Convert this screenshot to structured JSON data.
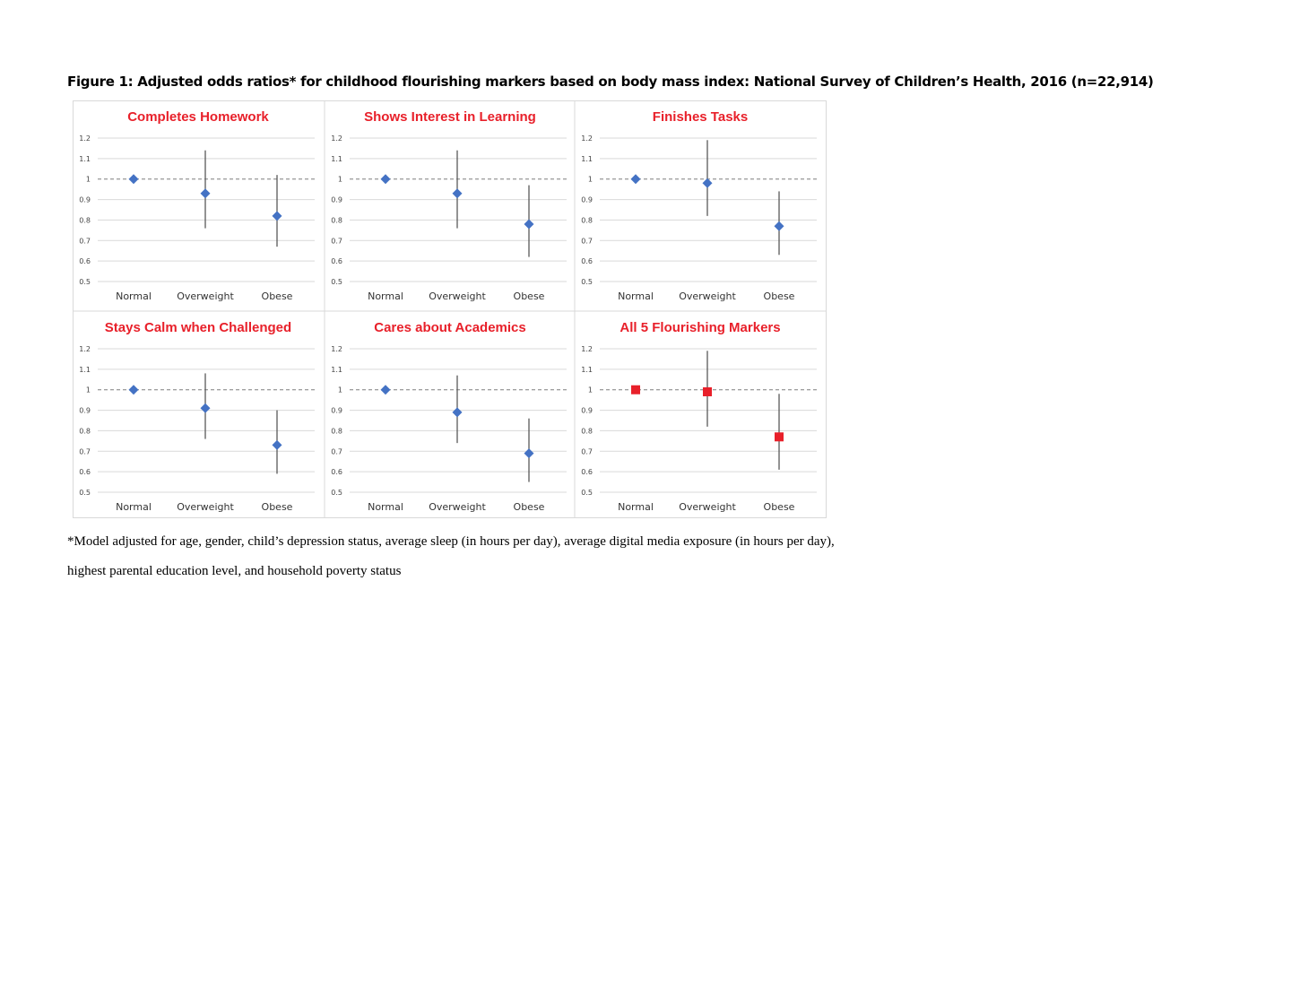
{
  "figure": {
    "title": "Figure 1: Adjusted odds ratios* for childhood flourishing markers based on body mass index: National Survey of Children’s Health, 2016 (n=22,914)",
    "footnote_line1": "*Model adjusted for age, gender, child’s depression status, average sleep (in hours per day), average digital media exposure (in hours per day),",
    "footnote_line2": "highest parental education level, and household poverty status"
  },
  "colors": {
    "title_red": "#e8202a",
    "marker_blue": "#4472c4",
    "marker_red": "#e8202a",
    "errorbar": "#595959",
    "gridline": "#d9d9d9",
    "reference_line": "#7f7f7f"
  },
  "chart_data": [
    {
      "type": "scatter",
      "title": "Completes Homework",
      "categories": [
        "Normal",
        "Overweight",
        "Obese"
      ],
      "values": [
        1.0,
        0.93,
        0.82
      ],
      "ci_low": [
        1.0,
        0.76,
        0.67
      ],
      "ci_high": [
        1.0,
        1.14,
        1.02
      ],
      "marker": "diamond",
      "color": "#4472c4",
      "ylim": [
        0.5,
        1.2
      ],
      "yticks": [
        "0.5",
        "0.6",
        "0.7",
        "0.8",
        "0.9",
        "1",
        "1.1",
        "1.2"
      ],
      "reference_line": 1,
      "grid": true
    },
    {
      "type": "scatter",
      "title": "Shows Interest in Learning",
      "categories": [
        "Normal",
        "Overweight",
        "Obese"
      ],
      "values": [
        1.0,
        0.93,
        0.78
      ],
      "ci_low": [
        1.0,
        0.76,
        0.62
      ],
      "ci_high": [
        1.0,
        1.14,
        0.97
      ],
      "marker": "diamond",
      "color": "#4472c4",
      "ylim": [
        0.5,
        1.2
      ],
      "yticks": [
        "0.5",
        "0.6",
        "0.7",
        "0.8",
        "0.9",
        "1",
        "1.1",
        "1.2"
      ],
      "reference_line": 1,
      "grid": true
    },
    {
      "type": "scatter",
      "title": "Finishes Tasks",
      "categories": [
        "Normal",
        "Overweight",
        "Obese"
      ],
      "values": [
        1.0,
        0.98,
        0.77
      ],
      "ci_low": [
        1.0,
        0.82,
        0.63
      ],
      "ci_high": [
        1.0,
        1.19,
        0.94
      ],
      "marker": "diamond",
      "color": "#4472c4",
      "ylim": [
        0.5,
        1.2
      ],
      "yticks": [
        "0.5",
        "0.6",
        "0.7",
        "0.8",
        "0.9",
        "1",
        "1.1",
        "1.2"
      ],
      "reference_line": 1,
      "grid": true
    },
    {
      "type": "scatter",
      "title": "Stays Calm when Challenged",
      "categories": [
        "Normal",
        "Overweight",
        "Obese"
      ],
      "values": [
        1.0,
        0.91,
        0.73
      ],
      "ci_low": [
        1.0,
        0.76,
        0.59
      ],
      "ci_high": [
        1.0,
        1.08,
        0.9
      ],
      "marker": "diamond",
      "color": "#4472c4",
      "ylim": [
        0.5,
        1.2
      ],
      "yticks": [
        "0.5",
        "0.6",
        "0.7",
        "0.8",
        "0.9",
        "1",
        "1.1",
        "1.2"
      ],
      "reference_line": 1,
      "grid": true
    },
    {
      "type": "scatter",
      "title": "Cares about Academics",
      "categories": [
        "Normal",
        "Overweight",
        "Obese"
      ],
      "values": [
        1.0,
        0.89,
        0.69
      ],
      "ci_low": [
        1.0,
        0.74,
        0.55
      ],
      "ci_high": [
        1.0,
        1.07,
        0.86
      ],
      "marker": "diamond",
      "color": "#4472c4",
      "ylim": [
        0.5,
        1.2
      ],
      "yticks": [
        "0.5",
        "0.6",
        "0.7",
        "0.8",
        "0.9",
        "1",
        "1.1",
        "1.2"
      ],
      "reference_line": 1,
      "grid": true
    },
    {
      "type": "scatter",
      "title": "All 5 Flourishing Markers",
      "categories": [
        "Normal",
        "Overweight",
        "Obese"
      ],
      "values": [
        1.0,
        0.99,
        0.77
      ],
      "ci_low": [
        1.0,
        0.82,
        0.61
      ],
      "ci_high": [
        1.0,
        1.19,
        0.98
      ],
      "marker": "square",
      "color": "#e8202a",
      "ylim": [
        0.5,
        1.2
      ],
      "yticks": [
        "0.5",
        "0.6",
        "0.7",
        "0.8",
        "0.9",
        "1",
        "1.1",
        "1.2"
      ],
      "reference_line": 1,
      "grid": true
    }
  ]
}
